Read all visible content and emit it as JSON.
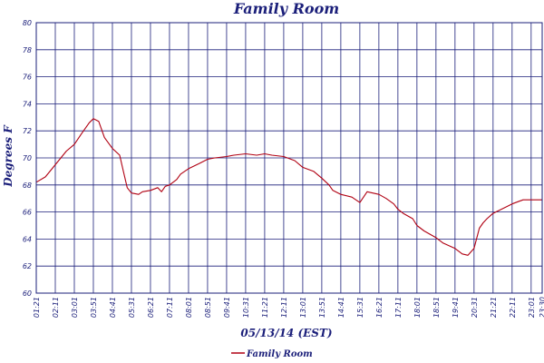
{
  "colors": {
    "text": "#1b1f7a",
    "grid": "#1b1f7a",
    "series": "#b00012",
    "background": "#ffffff"
  },
  "chart_data": {
    "type": "line",
    "title": "Family Room",
    "xlabel": "05/13/14 (EST)",
    "ylabel": "Degrees F",
    "ylim": [
      60,
      80
    ],
    "y_ticks": [
      60,
      62,
      64,
      66,
      68,
      70,
      72,
      74,
      76,
      78,
      80
    ],
    "x_tick_labels": [
      "01:21",
      "02:11",
      "03:01",
      "03:51",
      "04:41",
      "05:31",
      "06:21",
      "07:11",
      "08:01",
      "08:51",
      "09:41",
      "10:31",
      "11:21",
      "12:11",
      "13:01",
      "13:51",
      "14:41",
      "15:31",
      "16:21",
      "17:11",
      "18:01",
      "18:51",
      "19:41",
      "20:31",
      "21:21",
      "22:11",
      "23:01",
      "23:30"
    ],
    "grid": true,
    "legend_position": "bottom-left",
    "series": [
      {
        "name": "Family Room",
        "x": [
          "01:21",
          "01:45",
          "02:11",
          "02:40",
          "03:01",
          "03:20",
          "03:40",
          "03:51",
          "04:05",
          "04:20",
          "04:41",
          "05:00",
          "05:10",
          "05:20",
          "05:31",
          "05:50",
          "06:00",
          "06:21",
          "06:40",
          "06:50",
          "07:00",
          "07:11",
          "07:30",
          "07:40",
          "08:01",
          "08:30",
          "08:51",
          "09:10",
          "09:41",
          "10:00",
          "10:31",
          "11:00",
          "11:21",
          "11:40",
          "12:11",
          "12:40",
          "13:01",
          "13:30",
          "13:51",
          "14:10",
          "14:20",
          "14:41",
          "15:10",
          "15:31",
          "15:50",
          "16:21",
          "16:40",
          "17:00",
          "17:11",
          "17:25",
          "17:50",
          "18:01",
          "18:20",
          "18:51",
          "19:10",
          "19:41",
          "20:00",
          "20:15",
          "20:31",
          "20:45",
          "20:55",
          "21:05",
          "21:21",
          "21:50",
          "22:11",
          "22:30",
          "22:40",
          "23:01",
          "23:30"
        ],
        "y": [
          68.2,
          68.6,
          69.5,
          70.5,
          71.0,
          71.8,
          72.6,
          72.9,
          72.7,
          71.5,
          70.7,
          70.2,
          69.0,
          67.8,
          67.4,
          67.3,
          67.5,
          67.6,
          67.8,
          67.5,
          67.9,
          68.0,
          68.4,
          68.8,
          69.2,
          69.6,
          69.9,
          70.0,
          70.1,
          70.2,
          70.3,
          70.2,
          70.3,
          70.2,
          70.1,
          69.8,
          69.3,
          69.0,
          68.5,
          68.0,
          67.6,
          67.3,
          67.1,
          66.7,
          67.5,
          67.3,
          67.0,
          66.6,
          66.2,
          65.9,
          65.5,
          65.0,
          64.6,
          64.1,
          63.7,
          63.3,
          62.9,
          62.8,
          63.3,
          64.8,
          65.2,
          65.5,
          65.9,
          66.3,
          66.6,
          66.8,
          66.9,
          66.9,
          66.9
        ]
      }
    ]
  }
}
